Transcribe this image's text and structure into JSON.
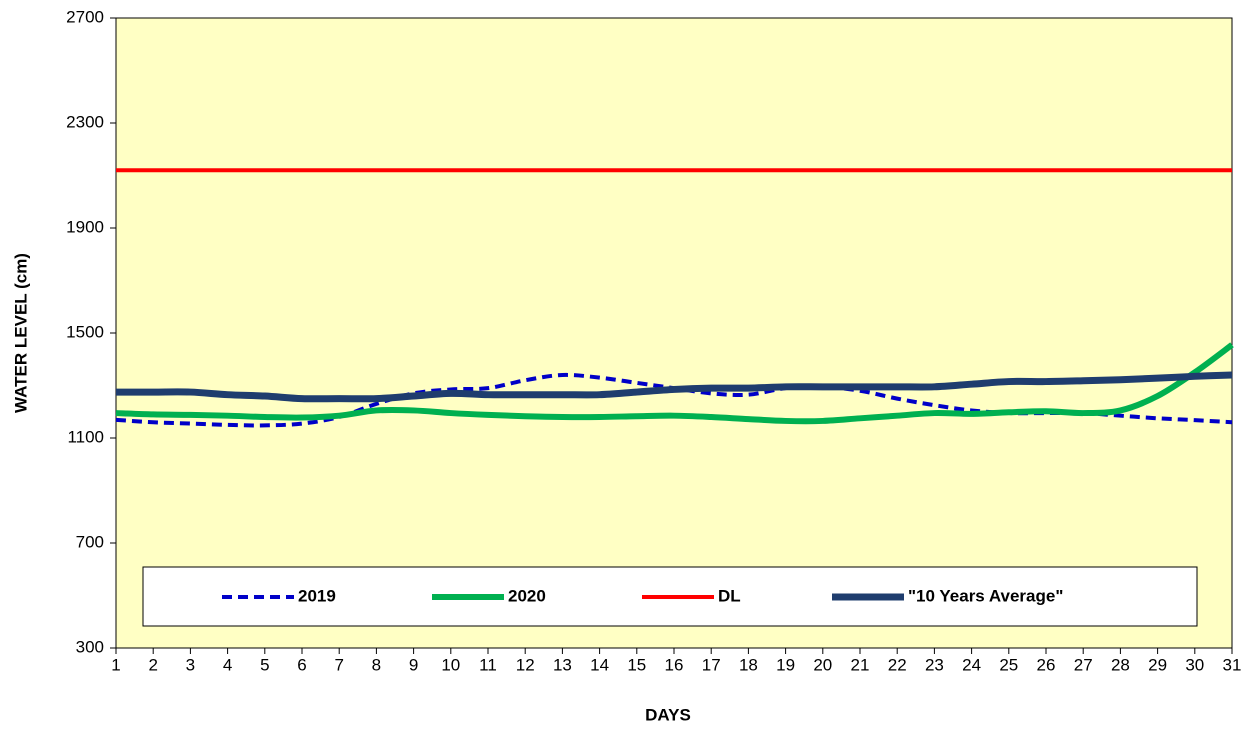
{
  "chart_data": {
    "type": "line",
    "x_label": "DAYS",
    "y_label": "WATER LEVEL (cm)",
    "x": [
      1,
      2,
      3,
      4,
      5,
      6,
      7,
      8,
      9,
      10,
      11,
      12,
      13,
      14,
      15,
      16,
      17,
      18,
      19,
      20,
      21,
      22,
      23,
      24,
      25,
      26,
      27,
      28,
      29,
      30,
      31
    ],
    "xlim": [
      1,
      31
    ],
    "xticks": [
      1,
      2,
      3,
      4,
      5,
      6,
      7,
      8,
      9,
      10,
      11,
      12,
      13,
      14,
      15,
      16,
      17,
      18,
      19,
      20,
      21,
      22,
      23,
      24,
      25,
      26,
      27,
      28,
      29,
      30,
      31
    ],
    "ylim": [
      300,
      2700
    ],
    "yticks": [
      300,
      700,
      1100,
      1500,
      1900,
      2300,
      2700
    ],
    "legend": "bottom",
    "series": [
      {
        "name": "2019",
        "color": "#0000c8",
        "dash": true,
        "width": 4,
        "values": [
          1169,
          1160,
          1155,
          1150,
          1148,
          1155,
          1180,
          1230,
          1270,
          1285,
          1290,
          1320,
          1340,
          1330,
          1310,
          1290,
          1270,
          1265,
          1290,
          1295,
          1280,
          1250,
          1225,
          1205,
          1195,
          1195,
          1195,
          1185,
          1175,
          1168,
          1160
        ]
      },
      {
        "name": "2020",
        "color": "#00b050",
        "dash": false,
        "width": 6,
        "values": [
          1195,
          1190,
          1188,
          1185,
          1180,
          1178,
          1185,
          1205,
          1205,
          1195,
          1188,
          1183,
          1180,
          1180,
          1183,
          1185,
          1180,
          1172,
          1165,
          1165,
          1175,
          1185,
          1195,
          1192,
          1198,
          1202,
          1195,
          1205,
          1260,
          1350,
          1455
        ]
      },
      {
        "name": "DL",
        "color": "#ff0000",
        "dash": false,
        "width": 4,
        "values": [
          2120,
          2120,
          2120,
          2120,
          2120,
          2120,
          2120,
          2120,
          2120,
          2120,
          2120,
          2120,
          2120,
          2120,
          2120,
          2120,
          2120,
          2120,
          2120,
          2120,
          2120,
          2120,
          2120,
          2120,
          2120,
          2120,
          2120,
          2120,
          2120,
          2120,
          2120
        ]
      },
      {
        "name": "\"10 Years Average\"",
        "color": "#1f3d6e",
        "dash": false,
        "width": 7,
        "values": [
          1275,
          1275,
          1275,
          1265,
          1260,
          1250,
          1250,
          1250,
          1260,
          1270,
          1265,
          1265,
          1265,
          1265,
          1275,
          1285,
          1290,
          1290,
          1295,
          1295,
          1295,
          1295,
          1295,
          1305,
          1315,
          1315,
          1318,
          1322,
          1328,
          1335,
          1340
        ]
      }
    ]
  }
}
